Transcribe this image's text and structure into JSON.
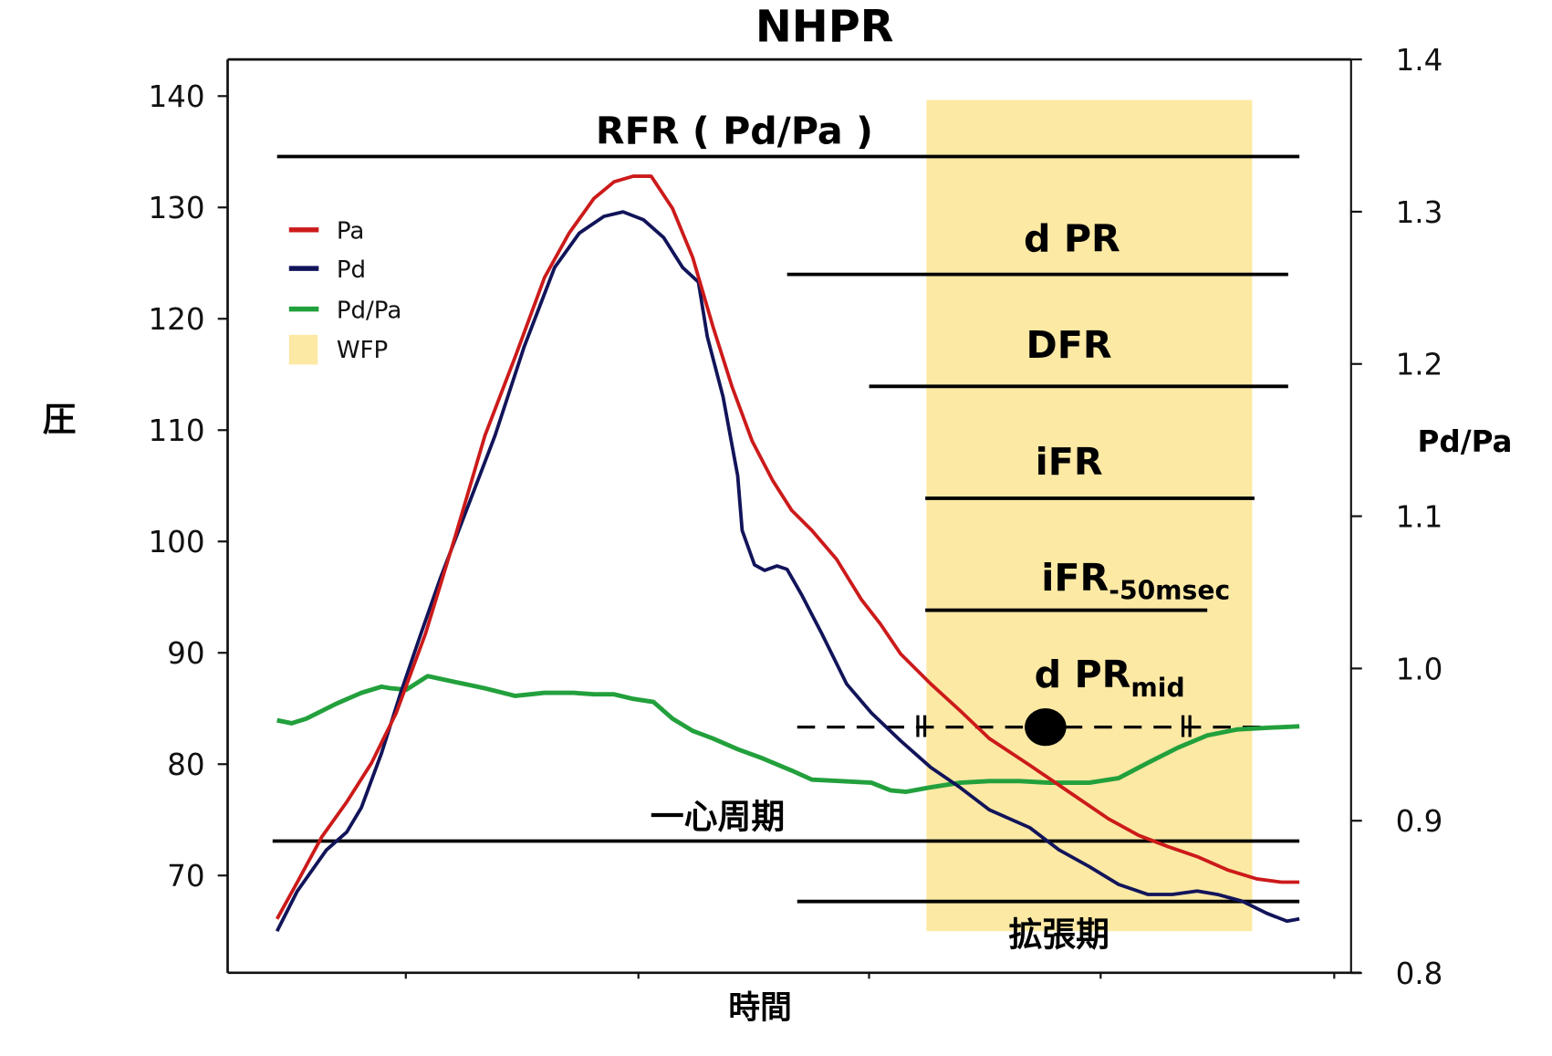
{
  "chart_data": {
    "type": "line",
    "title": "NHPR",
    "xlabel": "時間",
    "ylabel": "圧",
    "y2label": "Pd/Pa",
    "xlim": [
      0,
      100
    ],
    "ylim": [
      63,
      143.2
    ],
    "y2lim": [
      0.8,
      1.4
    ],
    "yticks": [
      140,
      130,
      120,
      110,
      100,
      90,
      80,
      70
    ],
    "y2ticks": [
      "1.4",
      "1.3",
      "1.2",
      "1.1",
      "1.0",
      "0.9",
      "0.8"
    ],
    "colors": {
      "Pa": "#cc1a1a",
      "Pd": "#12145a",
      "PdPa": "#22a03c",
      "WFP": "#fce9a4"
    },
    "legend": {
      "placement": "upper-left",
      "items": [
        "Pa",
        "Pd",
        "Pd/Pa",
        "WFP"
      ]
    },
    "series": [
      {
        "name": "Pa",
        "axis": "left",
        "x": [
          4.4,
          6.2,
          8.4,
          10.6,
          12.8,
          15,
          17.6,
          20.3,
          22.9,
          25.6,
          28.2,
          30.4,
          32.6,
          34.4,
          36.1,
          37.7,
          39.6,
          41.4,
          43.2,
          44.9,
          46.7,
          48.5,
          50.2,
          52,
          54.2,
          56.4,
          58.1,
          59.9,
          62.6,
          65.2,
          67.8,
          71.4,
          74.9,
          78.4,
          81.1,
          83.7,
          86.3,
          89,
          91.6,
          93.8,
          95.4
        ],
        "y": [
          66.1,
          69.4,
          73.5,
          76.6,
          80.1,
          84.6,
          91.7,
          100.6,
          109.5,
          116.6,
          123.7,
          127.7,
          130.8,
          132.3,
          132.8,
          132.8,
          129.9,
          125.5,
          119.3,
          113.9,
          109,
          105.5,
          102.8,
          101,
          98.4,
          94.8,
          92.6,
          89.9,
          87.2,
          84.8,
          82.3,
          79.9,
          77.5,
          75.1,
          73.6,
          72.6,
          71.7,
          70.5,
          69.7,
          69.4,
          69.4
        ]
      },
      {
        "name": "Pd",
        "axis": "left",
        "x": [
          4.4,
          6.2,
          8.8,
          10.6,
          11.9,
          13.7,
          15.4,
          17.2,
          18.9,
          21.1,
          23.8,
          26.4,
          29.1,
          31.3,
          33.5,
          35.2,
          37,
          38.8,
          40.5,
          41.9,
          42.7,
          44.1,
          45.4,
          45.8,
          46.9,
          47.8,
          48.9,
          49.8,
          51.1,
          52.9,
          55.1,
          57.3,
          59.9,
          62.6,
          65.2,
          67.8,
          71.4,
          74,
          76.7,
          79.3,
          81.9,
          84.1,
          86.3,
          88.1,
          90.3,
          92.5,
          94.3,
          95.4
        ],
        "y": [
          65,
          68.6,
          72.3,
          73.9,
          76.1,
          81,
          86.4,
          91.7,
          96.6,
          102.4,
          109.5,
          117.5,
          124.6,
          127.7,
          129.2,
          129.6,
          128.9,
          127.3,
          124.6,
          123.3,
          118.4,
          113,
          105.9,
          101,
          97.9,
          97.4,
          97.8,
          97.5,
          95.2,
          91.7,
          87.2,
          84.6,
          82.1,
          79.7,
          77.9,
          75.9,
          74.3,
          72.3,
          70.8,
          69.2,
          68.3,
          68.3,
          68.6,
          68.3,
          67.7,
          66.6,
          65.9,
          66.1
        ]
      },
      {
        "name": "Pd/Pa",
        "axis": "right",
        "x": [
          4.4,
          5.7,
          7,
          9.7,
          11.9,
          13.7,
          14.5,
          15.9,
          17.8,
          20.3,
          22.9,
          25.6,
          28.2,
          30.8,
          32.6,
          34.4,
          36.1,
          37.9,
          39.6,
          41.4,
          43.2,
          45.4,
          47.6,
          50.2,
          52,
          54.6,
          57.3,
          59,
          60.4,
          62.6,
          65.2,
          67.8,
          70.5,
          73.1,
          76.7,
          79.3,
          81.9,
          84.6,
          87.2,
          89.9,
          92.5,
          95.4
        ],
        "y": [
          0.966,
          0.964,
          0.967,
          0.977,
          0.984,
          0.988,
          0.987,
          0.986,
          0.995,
          0.991,
          0.987,
          0.982,
          0.984,
          0.984,
          0.983,
          0.983,
          0.98,
          0.978,
          0.967,
          0.959,
          0.954,
          0.947,
          0.941,
          0.933,
          0.927,
          0.926,
          0.925,
          0.92,
          0.919,
          0.922,
          0.925,
          0.926,
          0.926,
          0.925,
          0.925,
          0.928,
          0.938,
          0.948,
          0.956,
          0.96,
          0.961,
          0.962
        ]
      }
    ],
    "wfp_band": {
      "label": "WFP",
      "x_start": 62.2,
      "x_end": 91.2
    },
    "intervals": [
      {
        "label": "RFR ( Pd/Pa )",
        "x_start": 4.4,
        "x_end": 95.4
      },
      {
        "label": "d PR",
        "x_start": 49.8,
        "x_end": 94.4
      },
      {
        "label": "DFR",
        "x_start": 57.1,
        "x_end": 94.4
      },
      {
        "label": "iFR",
        "x_start": 62.1,
        "x_end": 91.4
      },
      {
        "label": "iFR",
        "sub": "-50msec",
        "x_start": 62.1,
        "x_end": 87.2
      },
      {
        "label": "d PR",
        "sub": "mid",
        "x_start": 50.7,
        "x_end": 95.4,
        "dashed": true,
        "marker_start": 61.7,
        "marker_end": 85.3,
        "mid_point": 72.8
      },
      {
        "label": "一心周期",
        "x_start": 4,
        "x_end": 95.4
      },
      {
        "label": "拡張期",
        "x_start": 50.7,
        "x_end": 95.4
      }
    ]
  }
}
